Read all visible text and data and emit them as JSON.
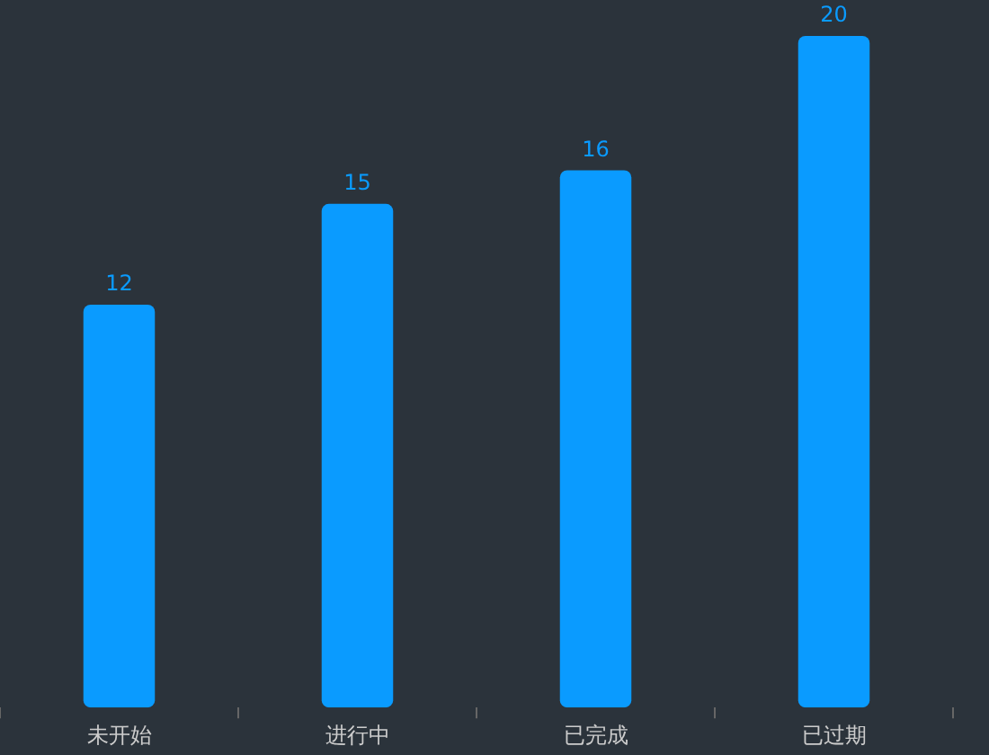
{
  "chart_data": {
    "type": "bar",
    "categories": [
      "未开始",
      "进行中",
      "已完成",
      "已过期"
    ],
    "values": [
      12,
      15,
      16,
      20
    ],
    "color": "#0a9bff",
    "data_labels": true,
    "grid": false,
    "legend": false
  }
}
